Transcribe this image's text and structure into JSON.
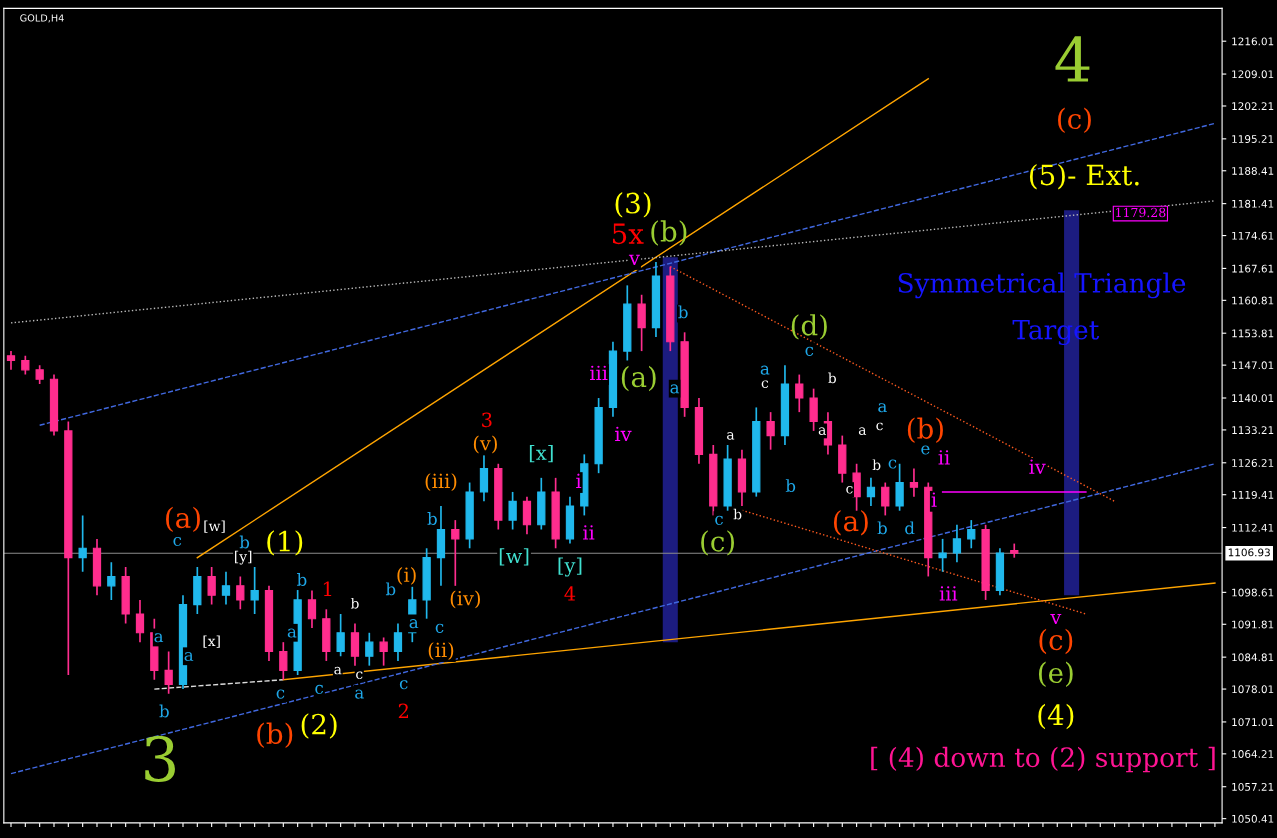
{
  "chart_data": {
    "type": "candlestick",
    "title": "GOLD,H4",
    "categories": [
      null,
      null,
      null,
      null,
      null,
      null,
      null,
      null,
      null,
      null,
      null,
      null,
      null,
      null,
      null,
      null,
      null,
      null,
      null,
      null,
      null,
      null,
      null,
      null,
      null,
      null,
      null,
      null,
      null,
      null,
      null,
      null,
      null,
      null,
      null,
      null,
      null,
      null,
      null,
      null,
      null,
      null,
      null,
      null,
      null,
      null,
      null,
      null,
      null,
      null,
      null,
      null,
      null,
      null,
      null,
      null,
      null,
      null,
      null,
      null,
      null,
      null,
      null,
      null,
      null,
      null,
      null,
      null,
      null,
      null,
      null,
      null,
      null,
      null,
      null,
      null,
      null,
      null,
      null,
      null,
      null,
      null,
      null,
      null,
      null
    ],
    "ylim": [
      1049.5,
      1223
    ],
    "yticks": [
      1216.01,
      1209.01,
      1202.21,
      1195.21,
      1188.41,
      1181.41,
      1174.61,
      1167.61,
      1160.81,
      1153.81,
      1147.01,
      1140.01,
      1133.21,
      1126.21,
      1119.41,
      1112.41,
      1098.61,
      1091.81,
      1084.81,
      1078.01,
      1071.01,
      1064.21,
      1057.21,
      1050.41
    ],
    "tick_labels": "y",
    "series": [
      {
        "type": "bar",
        "base": [
          null,
          null,
          null,
          null,
          null,
          null,
          null,
          null,
          null,
          null,
          null,
          null,
          null,
          null,
          null,
          null,
          null,
          null,
          null,
          null,
          null,
          null,
          null,
          null,
          null,
          null,
          null,
          null,
          null,
          null,
          null,
          null,
          null,
          null,
          null,
          null,
          null,
          null,
          null,
          null,
          null,
          null,
          null,
          null,
          null,
          null,
          1088,
          null,
          null,
          null,
          null,
          null,
          null,
          null,
          null,
          null,
          null,
          null,
          null,
          null,
          null,
          null,
          null,
          null,
          null,
          null,
          null,
          null,
          null,
          null,
          null,
          null,
          null,
          null,
          1098,
          null,
          null,
          null,
          null,
          null,
          null,
          null,
          null,
          null,
          null
        ],
        "values": [
          null,
          null,
          null,
          null,
          null,
          null,
          null,
          null,
          null,
          null,
          null,
          null,
          null,
          null,
          null,
          null,
          null,
          null,
          null,
          null,
          null,
          null,
          null,
          null,
          null,
          null,
          null,
          null,
          null,
          null,
          null,
          null,
          null,
          null,
          null,
          null,
          null,
          null,
          null,
          null,
          null,
          null,
          null,
          null,
          null,
          null,
          82,
          null,
          null,
          null,
          null,
          null,
          null,
          null,
          null,
          null,
          null,
          null,
          null,
          null,
          null,
          null,
          null,
          null,
          null,
          null,
          null,
          null,
          null,
          null,
          null,
          null,
          null,
          null,
          82,
          null,
          null,
          null,
          null,
          null,
          null,
          null,
          null,
          null,
          null
        ],
        "color": "#1c1c80"
      },
      {
        "type": "line",
        "values": [
          null,
          null,
          null,
          null,
          null,
          null,
          null,
          null,
          null,
          null,
          1078,
          null,
          null,
          null,
          null,
          null,
          null,
          null,
          null,
          1080,
          null,
          null,
          null,
          null,
          null,
          null,
          null,
          null,
          null,
          null,
          null,
          null,
          null,
          null,
          null,
          null,
          null,
          null,
          null,
          null,
          null,
          null,
          null,
          null,
          null,
          null,
          null,
          null,
          null,
          null,
          null,
          null,
          null,
          null,
          null,
          null,
          null,
          null,
          null,
          null,
          null,
          null,
          null,
          null,
          null,
          null,
          null,
          null,
          null,
          null,
          null,
          null,
          null,
          null,
          null,
          null,
          null,
          null,
          null,
          null,
          null,
          null,
          null,
          null,
          null
        ],
        "color": "#dddddd",
        "line_style": "dashed"
      },
      {
        "type": "line",
        "values": [
          null,
          null,
          null,
          null,
          null,
          null,
          null,
          null,
          null,
          null,
          null,
          null,
          null,
          null,
          null,
          null,
          null,
          null,
          null,
          1080,
          null,
          null,
          null,
          null,
          null,
          null,
          null,
          null,
          null,
          null,
          null,
          null,
          null,
          null,
          null,
          null,
          null,
          null,
          null,
          null,
          null,
          null,
          null,
          null,
          null,
          null,
          null,
          null,
          null,
          null,
          null,
          null,
          null,
          null,
          null,
          null,
          null,
          null,
          null,
          null,
          null,
          null,
          null,
          null,
          null,
          null,
          null,
          null,
          null,
          null,
          null,
          null,
          null,
          null,
          null,
          null,
          null,
          null,
          null,
          null,
          null,
          null,
          null,
          null,
          1100.6
        ],
        "color": "#ffa500",
        "line_style": "solid"
      },
      {
        "type": "line",
        "values": [
          null,
          null,
          null,
          null,
          null,
          null,
          null,
          null,
          null,
          null,
          null,
          null,
          null,
          1106,
          null,
          null,
          null,
          null,
          null,
          null,
          null,
          null,
          null,
          null,
          null,
          null,
          null,
          null,
          null,
          null,
          null,
          null,
          null,
          null,
          null,
          null,
          null,
          null,
          null,
          null,
          null,
          null,
          null,
          null,
          null,
          null,
          null,
          null,
          null,
          null,
          null,
          null,
          null,
          null,
          null,
          null,
          null,
          null,
          null,
          null,
          null,
          null,
          null,
          null,
          1208,
          null,
          null,
          null,
          null,
          null,
          null,
          null,
          null,
          null,
          null,
          null,
          null,
          null,
          null,
          null,
          null,
          null,
          null,
          null,
          null
        ],
        "color": "#ffa500",
        "line_style": "solid"
      },
      {
        "type": "line",
        "values": [
          1060,
          null,
          null,
          null,
          null,
          null,
          null,
          null,
          null,
          null,
          null,
          null,
          null,
          null,
          null,
          null,
          null,
          null,
          null,
          null,
          null,
          null,
          null,
          null,
          null,
          null,
          null,
          null,
          null,
          null,
          null,
          null,
          null,
          null,
          null,
          null,
          null,
          null,
          null,
          null,
          null,
          null,
          null,
          null,
          null,
          null,
          null,
          null,
          null,
          null,
          null,
          null,
          null,
          null,
          null,
          null,
          null,
          null,
          null,
          null,
          null,
          null,
          null,
          null,
          null,
          null,
          null,
          null,
          null,
          null,
          null,
          null,
          null,
          null,
          null,
          null,
          null,
          null,
          null,
          null,
          null,
          null,
          null,
          null,
          1126
        ],
        "color": "#4169e1",
        "line_style": "dashed"
      },
      {
        "type": "line",
        "values": [
          null,
          null,
          1134.2,
          null,
          null,
          null,
          null,
          null,
          null,
          null,
          null,
          null,
          null,
          null,
          null,
          null,
          null,
          null,
          null,
          null,
          null,
          null,
          null,
          null,
          null,
          null,
          null,
          null,
          null,
          null,
          null,
          null,
          null,
          null,
          null,
          null,
          null,
          null,
          null,
          null,
          null,
          null,
          null,
          null,
          null,
          null,
          null,
          null,
          null,
          null,
          null,
          null,
          null,
          null,
          null,
          null,
          null,
          null,
          null,
          null,
          null,
          null,
          null,
          null,
          null,
          null,
          null,
          null,
          null,
          null,
          null,
          null,
          null,
          null,
          null,
          null,
          null,
          null,
          null,
          null,
          null,
          null,
          null,
          null,
          1198.5
        ],
        "color": "#4169e1",
        "line_style": "dashed"
      },
      {
        "type": "line",
        "values": [
          1156,
          null,
          null,
          null,
          null,
          null,
          null,
          null,
          null,
          null,
          null,
          null,
          null,
          null,
          null,
          null,
          null,
          null,
          null,
          null,
          null,
          null,
          null,
          null,
          null,
          null,
          null,
          null,
          null,
          null,
          null,
          null,
          null,
          null,
          null,
          null,
          null,
          null,
          null,
          null,
          null,
          null,
          null,
          null,
          null,
          null,
          null,
          null,
          null,
          null,
          null,
          null,
          null,
          null,
          null,
          null,
          null,
          null,
          null,
          null,
          null,
          null,
          null,
          null,
          null,
          null,
          null,
          null,
          null,
          null,
          null,
          null,
          null,
          null,
          null,
          null,
          null,
          null,
          null,
          null,
          null,
          null,
          null,
          null,
          1182
        ],
        "color": "#bbbbbb",
        "line_style": "dotted"
      },
      {
        "type": "line",
        "values": [
          null,
          null,
          null,
          null,
          null,
          null,
          null,
          null,
          null,
          null,
          null,
          null,
          null,
          null,
          null,
          null,
          null,
          null,
          null,
          null,
          null,
          null,
          null,
          null,
          null,
          null,
          null,
          null,
          null,
          null,
          null,
          null,
          null,
          null,
          null,
          null,
          null,
          null,
          null,
          null,
          null,
          null,
          null,
          null,
          null,
          null,
          1168,
          null,
          null,
          null,
          null,
          null,
          null,
          null,
          null,
          null,
          null,
          null,
          null,
          null,
          null,
          null,
          null,
          null,
          null,
          null,
          null,
          null,
          null,
          null,
          null,
          null,
          null,
          null,
          null,
          null,
          null,
          1118,
          null,
          null,
          null,
          null,
          null,
          null,
          null
        ],
        "color": "#ff5a1f",
        "line_style": "dotted"
      },
      {
        "type": "line",
        "values": [
          null,
          null,
          null,
          null,
          null,
          null,
          null,
          null,
          null,
          null,
          null,
          null,
          null,
          null,
          null,
          null,
          null,
          null,
          null,
          null,
          null,
          null,
          null,
          null,
          null,
          null,
          null,
          null,
          null,
          null,
          null,
          null,
          null,
          null,
          null,
          null,
          null,
          null,
          null,
          null,
          null,
          null,
          null,
          null,
          null,
          null,
          null,
          null,
          null,
          null,
          null,
          1116.1,
          null,
          null,
          null,
          null,
          null,
          null,
          null,
          null,
          null,
          null,
          null,
          null,
          null,
          null,
          null,
          null,
          null,
          null,
          null,
          null,
          null,
          null,
          null,
          1094,
          null,
          null,
          null,
          null,
          null,
          null,
          null,
          null,
          null
        ],
        "color": "#ff5a1f",
        "line_style": "dotted"
      },
      {
        "type": "line",
        "values": [
          null,
          null,
          null,
          null,
          null,
          null,
          null,
          null,
          null,
          null,
          null,
          null,
          null,
          null,
          null,
          null,
          null,
          null,
          null,
          null,
          null,
          null,
          null,
          null,
          null,
          null,
          null,
          null,
          null,
          null,
          null,
          null,
          null,
          null,
          null,
          null,
          null,
          null,
          null,
          null,
          null,
          null,
          null,
          null,
          null,
          null,
          null,
          null,
          null,
          null,
          null,
          null,
          null,
          null,
          null,
          null,
          null,
          null,
          null,
          null,
          null,
          null,
          null,
          null,
          null,
          1120,
          null,
          null,
          null,
          null,
          null,
          null,
          null,
          null,
          null,
          1120,
          null,
          null,
          null,
          null,
          null,
          null,
          null,
          null,
          null
        ],
        "color": "#ff00ff",
        "line_style": "solid"
      },
      {
        "ohlc": [
          [
            1149,
            1150,
            1146,
            1148
          ],
          [
            1148,
            1149,
            1145,
            1146
          ],
          [
            1146,
            1147,
            1143,
            1144
          ],
          [
            1144,
            1145,
            1132,
            1133
          ],
          [
            1133,
            1135,
            1081,
            1106
          ],
          [
            1106,
            1115,
            1103,
            1108
          ],
          [
            1108,
            1110,
            1098,
            1100
          ],
          [
            1100,
            1105,
            1097,
            1102
          ],
          [
            1102,
            1104,
            1092,
            1094
          ],
          [
            1094,
            1097,
            1088,
            1090
          ],
          [
            1090,
            1093,
            1080,
            1082
          ],
          [
            1082,
            1086,
            1077,
            1079
          ],
          [
            1079,
            1098,
            1078,
            1096
          ],
          [
            1096,
            1104,
            1094,
            1102
          ],
          [
            1102,
            1104,
            1096,
            1098
          ],
          [
            1098,
            1103,
            1096,
            1100
          ],
          [
            1100,
            1102,
            1095,
            1097
          ],
          [
            1097,
            1104,
            1094,
            1099
          ],
          [
            1099,
            1100,
            1084,
            1086
          ],
          [
            1086,
            1088,
            1080,
            1082
          ],
          [
            1082,
            1102,
            1081,
            1097
          ],
          [
            1097,
            1099,
            1091,
            1093
          ],
          [
            1093,
            1095,
            1084,
            1086
          ],
          [
            1086,
            1094,
            1085,
            1090
          ],
          [
            1090,
            1092,
            1083,
            1085
          ],
          [
            1085,
            1090,
            1083,
            1088
          ],
          [
            1088,
            1089,
            1083,
            1086
          ],
          [
            1086,
            1092,
            1084,
            1090
          ],
          [
            1090,
            1100,
            1088,
            1097
          ],
          [
            1097,
            1108,
            1093,
            1106
          ],
          [
            1106,
            1117,
            1100,
            1112
          ],
          [
            1112,
            1114,
            1100,
            1110
          ],
          [
            1110,
            1122,
            1108,
            1120
          ],
          [
            1120,
            1128,
            1118,
            1125
          ],
          [
            1125,
            1126,
            1112,
            1114
          ],
          [
            1114,
            1120,
            1112,
            1118
          ],
          [
            1118,
            1119,
            1111,
            1113
          ],
          [
            1113,
            1123,
            1112,
            1120
          ],
          [
            1120,
            1123,
            1108,
            1110
          ],
          [
            1110,
            1119,
            1109,
            1117
          ],
          [
            1117,
            1128,
            1115,
            1126
          ],
          [
            1126,
            1140,
            1124,
            1138
          ],
          [
            1138,
            1152,
            1136,
            1150
          ],
          [
            1150,
            1164,
            1148,
            1160
          ],
          [
            1160,
            1162,
            1150,
            1155
          ],
          [
            1155,
            1169,
            1153,
            1166
          ],
          [
            1166,
            1168,
            1150,
            1152
          ],
          [
            1152,
            1154,
            1136,
            1138
          ],
          [
            1138,
            1140,
            1126,
            1128
          ],
          [
            1128,
            1130,
            1115,
            1117
          ],
          [
            1117,
            1130,
            1116,
            1127
          ],
          [
            1127,
            1129,
            1117,
            1120
          ],
          [
            1120,
            1138,
            1119,
            1135
          ],
          [
            1135,
            1137,
            1129,
            1132
          ],
          [
            1132,
            1147,
            1130,
            1143
          ],
          [
            1143,
            1145,
            1137,
            1140
          ],
          [
            1140,
            1142,
            1133,
            1135
          ],
          [
            1135,
            1137,
            1128,
            1130
          ],
          [
            1130,
            1132,
            1122,
            1124
          ],
          [
            1124,
            1126,
            1116,
            1119
          ],
          [
            1119,
            1123,
            1117,
            1121
          ],
          [
            1121,
            1122,
            1115,
            1117
          ],
          [
            1117,
            1126,
            1116,
            1122
          ],
          [
            1122,
            1125,
            1119,
            1121
          ],
          [
            1121,
            1122,
            1102,
            1106
          ],
          [
            1106,
            1110,
            1103,
            1107
          ],
          [
            1107,
            1113,
            1105,
            1110
          ],
          [
            1110,
            1114,
            1108,
            1112
          ],
          [
            1112,
            1113,
            1097,
            1099
          ],
          [
            1099,
            1108,
            1098,
            1107
          ],
          [
            1107.5,
            1109,
            1106,
            1106.93
          ],
          null,
          null,
          null,
          null,
          null,
          null,
          null,
          null,
          null,
          null,
          null,
          null,
          null,
          null
        ],
        "colors": [
          "#ff2d8e",
          "#ff2d8e",
          "#ff2d8e",
          "#ff2d8e",
          "#ff2d8e",
          "#20b8ec",
          "#ff2d8e",
          "#20b8ec",
          "#ff2d8e",
          "#ff2d8e",
          "#ff2d8e",
          "#ff2d8e",
          "#20b8ec",
          "#20b8ec",
          "#ff2d8e",
          "#20b8ec",
          "#ff2d8e",
          "#20b8ec",
          "#ff2d8e",
          "#ff2d8e",
          "#20b8ec",
          "#ff2d8e",
          "#ff2d8e",
          "#20b8ec",
          "#ff2d8e",
          "#20b8ec",
          "#ff2d8e",
          "#20b8ec",
          "#20b8ec",
          "#20b8ec",
          "#20b8ec",
          "#ff2d8e",
          "#20b8ec",
          "#20b8ec",
          "#ff2d8e",
          "#20b8ec",
          "#ff2d8e",
          "#20b8ec",
          "#ff2d8e",
          "#20b8ec",
          "#20b8ec",
          "#20b8ec",
          "#20b8ec",
          "#20b8ec",
          "#ff2d8e",
          "#20b8ec",
          "#ff2d8e",
          "#ff2d8e",
          "#ff2d8e",
          "#ff2d8e",
          "#20b8ec",
          "#ff2d8e",
          "#20b8ec",
          "#ff2d8e",
          "#20b8ec",
          "#ff2d8e",
          "#ff2d8e",
          "#ff2d8e",
          "#ff2d8e",
          "#ff2d8e",
          "#20b8ec",
          "#ff2d8e",
          "#20b8ec",
          "#ff2d8e",
          "#ff2d8e",
          "#20b8ec",
          "#20b8ec",
          "#20b8ec",
          "#ff2d8e",
          "#20b8ec",
          "#ff2d8e",
          null,
          null,
          null,
          null,
          null,
          null,
          null,
          null,
          null,
          null,
          null,
          null,
          null,
          null
        ]
      }
    ],
    "ref_lines": [
      {
        "axis": "y",
        "value": 1106.93,
        "label": "1106.93",
        "color": "#8c8c8c",
        "line_style": "solid"
      }
    ],
    "annotations": [
      "4",
      "(c)",
      "(5)- Ext.",
      "1179.28",
      "Symmetrical Triangle",
      "Target",
      "(3)",
      "5x",
      "(b)",
      "v",
      "(d)",
      "(a)",
      "(c)",
      "(b)",
      "(a)",
      "iv",
      "v",
      "iii",
      "ii",
      "i",
      "(c)",
      "(e)",
      "(4)",
      "[ (4) down to (2) support ]",
      "3",
      "(b)",
      "(2)",
      "2",
      "(1)",
      "1",
      "(a)",
      "3",
      "4",
      "(iii)",
      "(v)",
      "(iv)",
      "(i)",
      "(ii)",
      "iii",
      "iv",
      "ii",
      "i",
      "c",
      "b",
      "a",
      "a",
      "b",
      "c",
      "a",
      "b",
      "c",
      "c",
      "a",
      "b",
      "a",
      "b",
      "a",
      "c",
      "c",
      "b",
      "[w]",
      "[y]",
      "[x]",
      "[x]",
      "[w]",
      "[y]",
      "a",
      "b",
      "a",
      "c",
      "b",
      "c",
      "a",
      "c",
      "e",
      "b",
      "d",
      "a",
      "b",
      "c",
      "b",
      "a",
      "a",
      "c",
      "b",
      "c"
    ]
  }
}
